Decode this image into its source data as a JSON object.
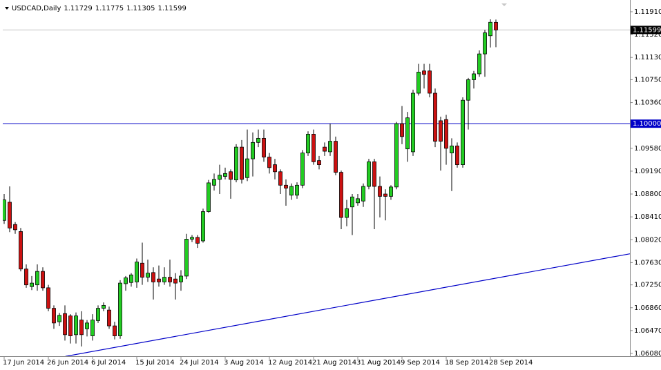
{
  "chart_data": {
    "type": "candlestick",
    "title": "USDCAD,Daily",
    "categories": [
      "17 Jun 2014",
      null,
      null,
      null,
      null,
      null,
      null,
      null,
      "26 Jun 2014",
      null,
      null,
      null,
      null,
      null,
      null,
      null,
      "6 Jul 2014",
      null,
      null,
      null,
      null,
      null,
      null,
      null,
      "15 Jul 2014",
      null,
      null,
      null,
      null,
      null,
      null,
      null,
      "24 Jul 2014",
      null,
      null,
      null,
      null,
      null,
      null,
      null,
      "3 Aug 2014",
      null,
      null,
      null,
      null,
      null,
      null,
      null,
      "12 Aug 2014",
      null,
      null,
      null,
      null,
      null,
      null,
      null,
      "21 Aug 2014",
      null,
      null,
      null,
      null,
      null,
      null,
      null,
      "31 Aug 2014",
      null,
      null,
      null,
      null,
      null,
      null,
      null,
      "9 Sep 2014",
      null,
      null,
      null,
      null,
      null,
      null,
      null,
      "18 Sep 2014",
      null,
      null,
      null,
      null,
      null,
      null,
      null,
      "28 Sep 2014",
      null
    ],
    "open": [
      1.0835,
      1.0866,
      1.0828,
      1.0816,
      1.0752,
      1.0722,
      1.0725,
      1.0748,
      1.072,
      1.0685,
      1.0662,
      1.0676,
      1.0672,
      1.064,
      1.0665,
      1.065,
      1.0638,
      1.0664,
      1.0685,
      1.0682,
      1.0655,
      1.0638,
      1.0727,
      1.0729,
      1.073,
      1.0762,
      1.0738,
      1.0746,
      1.0735,
      1.073,
      1.0738,
      1.0735,
      1.073,
      1.074,
      1.0803,
      1.0806,
      1.08,
      1.085,
      1.0895,
      1.0905,
      1.091,
      1.0918,
      1.0904,
      1.096,
      1.0908,
      1.094,
      1.0968,
      1.0975,
      1.0943,
      1.093,
      1.0918,
      1.0895,
      1.0878,
      1.0878,
      1.0895,
      1.095,
      1.0982,
      1.0937,
      1.096,
      1.0952,
      1.097,
      1.0917,
      1.084,
      1.0858,
      1.0865,
      1.0868,
      1.0893,
      1.0935,
      1.0893,
      1.088,
      1.0876,
      1.0892,
      1.1,
      1.0957,
      1.0952,
      1.1052,
      1.109,
      1.109,
      1.1052,
      1.1005,
      1.1007,
      1.095,
      1.0962,
      1.093,
      1.104,
      1.1075,
      1.1085,
      1.1119,
      1.115,
      1.11729
    ],
    "high": [
      1.088,
      1.0893,
      1.0832,
      1.0822,
      1.076,
      1.074,
      1.076,
      1.0755,
      1.0725,
      1.069,
      1.0677,
      1.069,
      1.0675,
      1.0678,
      1.068,
      1.0665,
      1.0675,
      1.069,
      1.0695,
      1.0688,
      1.0662,
      1.0733,
      1.074,
      1.0745,
      1.077,
      1.0797,
      1.0768,
      1.0755,
      1.0758,
      1.0755,
      1.0768,
      1.0745,
      1.075,
      1.0812,
      1.081,
      1.081,
      1.0855,
      1.0904,
      1.0915,
      1.093,
      1.0925,
      1.0922,
      1.0965,
      1.0972,
      1.099,
      1.0985,
      1.099,
      1.099,
      1.095,
      1.094,
      1.0922,
      1.0905,
      1.0898,
      1.09,
      1.0955,
      1.0987,
      1.099,
      1.0945,
      1.0968,
      1.1,
      1.0978,
      1.092,
      1.087,
      1.088,
      1.088,
      1.0898,
      1.094,
      1.094,
      1.091,
      1.0888,
      1.0895,
      1.1003,
      1.103,
      1.102,
      1.1058,
      1.1102,
      1.1102,
      1.1102,
      1.106,
      1.1012,
      1.1015,
      1.0975,
      1.0968,
      1.1045,
      1.1078,
      1.109,
      1.1125,
      1.116,
      1.1178,
      1.11775
    ],
    "low": [
      1.0829,
      1.0815,
      1.0812,
      1.0748,
      1.072,
      1.0716,
      1.0715,
      1.0715,
      1.068,
      1.065,
      1.0655,
      1.063,
      1.0625,
      1.0625,
      1.062,
      1.0637,
      1.063,
      1.066,
      1.068,
      1.065,
      1.0632,
      1.0633,
      1.0715,
      1.0722,
      1.072,
      1.0725,
      1.073,
      1.07,
      1.0722,
      1.0725,
      1.0722,
      1.07,
      1.0715,
      1.0735,
      1.0798,
      1.0788,
      1.0797,
      1.0848,
      1.0886,
      1.088,
      1.0905,
      1.0872,
      1.09,
      1.0898,
      1.0902,
      1.091,
      1.096,
      1.0935,
      1.0915,
      1.0905,
      1.088,
      1.086,
      1.087,
      1.0872,
      1.089,
      1.0945,
      1.093,
      1.0922,
      1.0945,
      1.0945,
      1.0912,
      1.082,
      1.0825,
      1.081,
      1.086,
      1.0858,
      1.0888,
      1.082,
      1.084,
      1.0835,
      1.087,
      1.0888,
      1.0965,
      1.0935,
      1.0945,
      1.1048,
      1.106,
      1.1045,
      1.096,
      1.092,
      1.093,
      1.0885,
      1.0925,
      1.0925,
      1.099,
      1.106,
      1.108,
      1.108,
      1.113,
      1.11305
    ],
    "close": [
      1.087,
      1.0822,
      1.0819,
      1.0752,
      1.0725,
      1.0728,
      1.0748,
      1.072,
      1.0685,
      1.066,
      1.0673,
      1.064,
      1.0638,
      1.0672,
      1.064,
      1.066,
      1.0665,
      1.0685,
      1.069,
      1.0655,
      1.0638,
      1.0728,
      1.0737,
      1.0742,
      1.0764,
      1.0738,
      1.0745,
      1.073,
      1.073,
      1.0738,
      1.073,
      1.0728,
      1.074,
      1.0803,
      1.0806,
      1.0796,
      1.085,
      1.0899,
      1.0905,
      1.0912,
      1.0915,
      1.0905,
      1.096,
      1.0905,
      1.094,
      1.0968,
      1.0975,
      1.0943,
      1.0925,
      1.0918,
      1.0895,
      1.089,
      1.0893,
      1.0895,
      1.095,
      1.0982,
      1.0935,
      1.093,
      1.0953,
      1.097,
      1.0917,
      1.084,
      1.0855,
      1.0875,
      1.0872,
      1.0893,
      1.0935,
      1.0893,
      1.0876,
      1.0876,
      1.0892,
      1.1,
      1.0978,
      1.101,
      1.1052,
      1.1088,
      1.1084,
      1.1052,
      1.097,
      1.097,
      1.0958,
      1.0962,
      1.093,
      1.104,
      1.1075,
      1.1085,
      1.1119,
      1.1155,
      1.1173,
      1.11599
    ],
    "up_color": "#22cc22",
    "down_color": "#cc1111",
    "ylim": [
      1.06033,
      1.12051
    ],
    "yticks": [
      {
        "value": 1.1191,
        "label": "1.11910"
      },
      {
        "value": 1.1152,
        "label": "1.11520"
      },
      {
        "value": 1.1113,
        "label": "1.11130"
      },
      {
        "value": 1.1075,
        "label": "1.10750"
      },
      {
        "value": 1.1036,
        "label": "1.10360"
      },
      {
        "value": 1.0958,
        "label": "1.09580"
      },
      {
        "value": 1.0919,
        "label": "1.09190"
      },
      {
        "value": 1.088,
        "label": "1.08800"
      },
      {
        "value": 1.0841,
        "label": "1.08410"
      },
      {
        "value": 1.0802,
        "label": "1.08020"
      },
      {
        "value": 1.0763,
        "label": "1.07630"
      },
      {
        "value": 1.0725,
        "label": "1.07250"
      },
      {
        "value": 1.0686,
        "label": "1.06860"
      },
      {
        "value": 1.0647,
        "label": "1.06470"
      },
      {
        "value": 1.0608,
        "label": "1.06080"
      }
    ],
    "hlines": [
      {
        "value": 1.1,
        "label": "1.10000",
        "color": "#0000c8"
      }
    ],
    "trendline": {
      "x": [
        11.1,
        113.25
      ],
      "y": [
        1.0603,
        1.0778
      ],
      "color": "#0000c8"
    },
    "grid": false
  }
}
